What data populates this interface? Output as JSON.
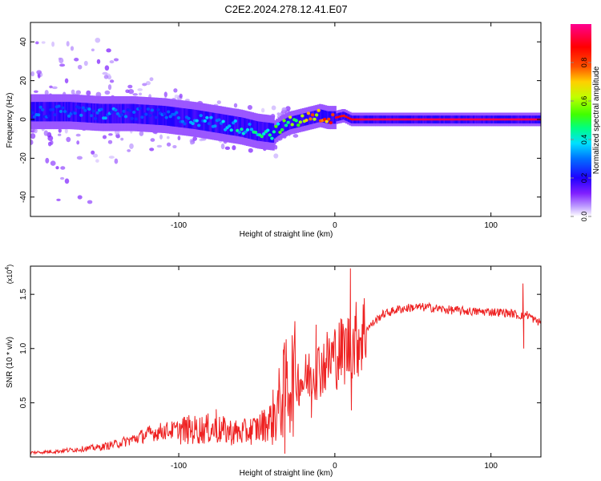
{
  "title": "C2E2.2024.278.12.41.E07",
  "chart_data": [
    {
      "type": "heatmap",
      "xlabel": "Height of straight line (km)",
      "ylabel": "Frequency (Hz)",
      "xlim": [
        -195,
        132
      ],
      "ylim": [
        -50,
        50
      ],
      "xticks": [
        -100,
        0,
        100
      ],
      "xtick_labels": [
        "-100",
        "0",
        "100"
      ],
      "yticks": [
        -40,
        -20,
        0,
        20,
        40
      ],
      "ytick_labels": [
        "-40",
        "-20",
        "0",
        "20",
        "40"
      ],
      "colorbar": {
        "label": "Normalized spectral amplitude",
        "range": [
          0,
          1
        ],
        "ticks": [
          0,
          0.2,
          0.4,
          0.6,
          0.8
        ],
        "tick_labels": [
          "0.0",
          "0.2",
          "0.4",
          "0.6",
          "0.8"
        ],
        "colormap": [
          "#ffffff",
          "#c0a0ff",
          "#8020ff",
          "#2000ff",
          "#0070ff",
          "#00e0ff",
          "#00ff80",
          "#40ff00",
          "#c0ff00",
          "#ffd000",
          "#ff5000",
          "#ff0000",
          "#ff0090"
        ]
      },
      "ridge": {
        "height_km": [
          -195,
          -170,
          -150,
          -130,
          -110,
          -90,
          -75,
          -60,
          -50,
          -40,
          -35,
          -30,
          -25,
          -20,
          -15,
          -10,
          -5,
          0,
          5,
          10,
          20,
          40,
          60,
          80,
          100,
          120,
          132
        ],
        "frequency_hz": [
          4,
          4,
          3,
          3,
          2,
          0,
          -2,
          -4,
          -6,
          -7,
          -4,
          -2,
          -1,
          0,
          1,
          2,
          1,
          1,
          2,
          0,
          0,
          0,
          0,
          0,
          0,
          0,
          0
        ],
        "amplitude": [
          0.3,
          0.3,
          0.35,
          0.3,
          0.3,
          0.35,
          0.35,
          0.45,
          0.45,
          0.5,
          0.55,
          0.6,
          0.65,
          0.75,
          0.8,
          0.85,
          0.85,
          0.9,
          0.85,
          0.9,
          0.95,
          0.95,
          0.95,
          0.95,
          0.95,
          0.95,
          0.95
        ]
      }
    },
    {
      "type": "line",
      "xlabel": "Height of straight line (km)",
      "ylabel": "SNR (10 * v/v)",
      "scale_label": "(x10",
      "scale_exponent": "4",
      "scale_suffix": ")",
      "xlim": [
        -195,
        132
      ],
      "ylim": [
        0,
        17600
      ],
      "xticks": [
        -100,
        0,
        100
      ],
      "xtick_labels": [
        "-100",
        "0",
        "100"
      ],
      "yticks": [
        5000,
        10000,
        15000
      ],
      "ytick_labels": [
        "0.5",
        "1.0",
        "1.5"
      ],
      "series": [
        {
          "color": "#ee2222",
          "x": [
            -195,
            -180,
            -165,
            -150,
            -140,
            -130,
            -120,
            -110,
            -100,
            -90,
            -80,
            -70,
            -60,
            -50,
            -45,
            -40,
            -35,
            -30,
            -25,
            -20,
            -15,
            -10,
            -5,
            0,
            5,
            10,
            15,
            20,
            25,
            30,
            40,
            50,
            60,
            70,
            80,
            90,
            100,
            110,
            115,
            118,
            120,
            122,
            125,
            128,
            132
          ],
          "y": [
            400,
            500,
            700,
            900,
            1200,
            1600,
            2100,
            2400,
            2500,
            2500,
            2600,
            2400,
            2200,
            2600,
            3000,
            3500,
            5000,
            7000,
            7200,
            7000,
            7800,
            8200,
            8800,
            9400,
            9800,
            10200,
            11000,
            11800,
            12400,
            13100,
            13600,
            13800,
            13800,
            13600,
            13500,
            13400,
            13400,
            13300,
            13200,
            13000,
            13100,
            13200,
            13000,
            12600,
            12400
          ],
          "spikes": [
            {
              "x": 10,
              "y": 17400
            },
            {
              "x": 10.6,
              "y": 4300
            },
            {
              "x": 120.5,
              "y": 16000
            },
            {
              "x": 121,
              "y": 10000
            },
            {
              "x": -76,
              "y": 4400
            },
            {
              "x": -33,
              "y": 9900
            },
            {
              "x": -32,
              "y": 300
            },
            {
              "x": -12,
              "y": 12200
            },
            {
              "x": -15,
              "y": 3600
            }
          ]
        }
      ]
    }
  ]
}
